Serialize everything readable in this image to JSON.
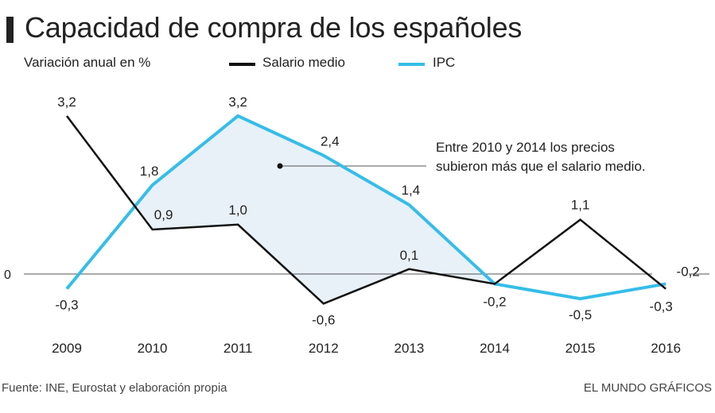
{
  "chart_data": {
    "type": "line",
    "title": "Capacidad de compra de los españoles",
    "subtitle": "Variación anual en %",
    "xlabel": "",
    "ylabel": "Variación anual en %",
    "x": [
      "2009",
      "2010",
      "2011",
      "2012",
      "2013",
      "2014",
      "2015",
      "2016"
    ],
    "ylim": [
      -0.6,
      3.2
    ],
    "yticks": [
      {
        "value": 0,
        "label": "0"
      }
    ],
    "grid": false,
    "legend": "top",
    "series": [
      {
        "name": "Salario medio",
        "color": "#111111",
        "values": [
          3.2,
          0.9,
          1.0,
          -0.6,
          0.1,
          -0.2,
          1.1,
          -0.3
        ],
        "labels": [
          "3,2",
          "0,9",
          "1,0",
          "-0,6",
          "0,1",
          "-0,2",
          "1,1",
          "-0,3"
        ]
      },
      {
        "name": "IPC",
        "color": "#35bde8",
        "values": [
          -0.3,
          1.8,
          3.2,
          2.4,
          1.4,
          -0.2,
          -0.5,
          -0.2
        ],
        "labels": [
          "-0,3",
          "1,8",
          "3,2",
          "2,4",
          "1,4",
          "",
          "-0,5",
          "-0,2"
        ]
      }
    ],
    "shaded_region": {
      "from": "2010",
      "to": "2014",
      "between": [
        "IPC",
        "Salario medio"
      ],
      "color": "#e8f0f8"
    },
    "annotation": {
      "lines": [
        "Entre 2010 y 2014 los precios",
        "subieron más que el salario medio."
      ],
      "anchor": {
        "x": "2011.5",
        "y": 2.2
      }
    }
  },
  "legend": {
    "items": [
      {
        "label": "Salario medio",
        "color": "#111111"
      },
      {
        "label": "IPC",
        "color": "#35bde8"
      }
    ]
  },
  "footer": {
    "source": "Fuente: INE, Eurostat y elaboración propia",
    "credit": "EL MUNDO GRÁFICOS"
  }
}
